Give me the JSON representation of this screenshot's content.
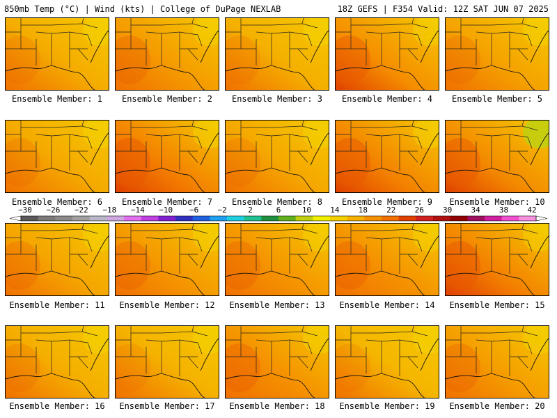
{
  "header": {
    "left": "850mb Temp (°C) | Wind (kts) | College of DuPage NEXLAB",
    "right": "18Z GEFS | F354 Valid: 12Z SAT JUN 07 2025"
  },
  "panels": [
    {
      "label": "Ensemble Member: 1",
      "tone": "#f5ad00",
      "warm": 0.3
    },
    {
      "label": "Ensemble Member: 2",
      "tone": "#f59a00",
      "warm": 0.55
    },
    {
      "label": "Ensemble Member: 3",
      "tone": "#f5b000",
      "warm": 0.3
    },
    {
      "label": "Ensemble Member: 4",
      "tone": "#f58d00",
      "warm": 0.75
    },
    {
      "label": "Ensemble Member: 5",
      "tone": "#f5a300",
      "warm": 0.4
    },
    {
      "label": "Ensemble Member: 6",
      "tone": "#f5aa00",
      "warm": 0.35
    },
    {
      "label": "Ensemble Member: 7",
      "tone": "#f37a00",
      "warm": 0.85
    },
    {
      "label": "Ensemble Member: 8",
      "tone": "#f5a800",
      "warm": 0.35
    },
    {
      "label": "Ensemble Member: 9",
      "tone": "#f38000",
      "warm": 0.85
    },
    {
      "label": "Ensemble Member: 10",
      "tone": "#f38800",
      "warm": 0.8
    },
    {
      "label": "Ensemble Member: 11",
      "tone": "#f5a500",
      "warm": 0.45
    },
    {
      "label": "Ensemble Member: 12",
      "tone": "#f59800",
      "warm": 0.55
    },
    {
      "label": "Ensemble Member: 13",
      "tone": "#f59500",
      "warm": 0.55
    },
    {
      "label": "Ensemble Member: 14",
      "tone": "#f59200",
      "warm": 0.6
    },
    {
      "label": "Ensemble Member: 15",
      "tone": "#f37e00",
      "warm": 0.85
    },
    {
      "label": "Ensemble Member: 16",
      "tone": "#f5ae00",
      "warm": 0.35
    },
    {
      "label": "Ensemble Member: 17",
      "tone": "#f5b200",
      "warm": 0.25
    },
    {
      "label": "Ensemble Member: 18",
      "tone": "#f59000",
      "warm": 0.6
    },
    {
      "label": "Ensemble Member: 19",
      "tone": "#f5b600",
      "warm": 0.25
    },
    {
      "label": "Ensemble Member: 20",
      "tone": "#f59d00",
      "warm": 0.5
    }
  ],
  "colorbar": {
    "ticks": [
      "−30",
      "−26",
      "−22",
      "−18",
      "−14",
      "−10",
      "−6",
      "−2",
      "2",
      "6",
      "10",
      "14",
      "18",
      "22",
      "26",
      "30",
      "34",
      "38",
      "42"
    ],
    "colors": [
      "#5a5a5a",
      "#7a7a7a",
      "#8a8a8a",
      "#a0a0a0",
      "#b8b8c8",
      "#cfa8e0",
      "#e070f0",
      "#c040e0",
      "#8020d0",
      "#3030c0",
      "#2060e0",
      "#20a0f0",
      "#20d0e0",
      "#20c090",
      "#209040",
      "#60b020",
      "#c0d010",
      "#f0f000",
      "#f5d000",
      "#f5b000",
      "#f59000",
      "#f07000",
      "#e04000",
      "#d02020",
      "#b01010",
      "#900000",
      "#a01060",
      "#d020a0",
      "#f050d0",
      "#f890e0"
    ]
  }
}
